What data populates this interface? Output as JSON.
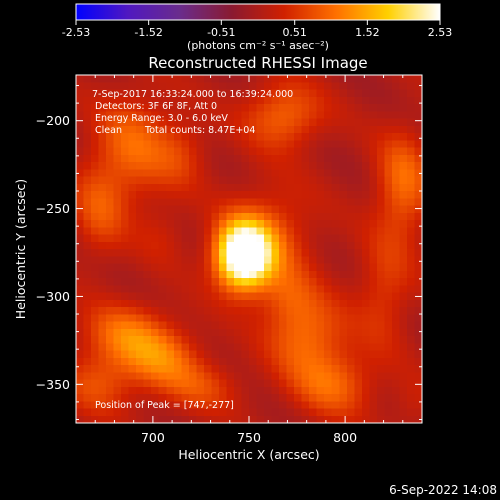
{
  "chart_data": {
    "type": "heatmap",
    "title": "Reconstructed RHESSI Image",
    "xlabel": "Heliocentric X (arcsec)",
    "ylabel": "Heliocentric Y (arcsec)",
    "xlim": [
      660,
      840
    ],
    "ylim": [
      -372,
      -174
    ],
    "x_ticks": [
      700,
      750,
      800
    ],
    "y_ticks": [
      -200,
      -250,
      -300,
      -350
    ],
    "colorbar": {
      "min": -2.53,
      "max": 2.53,
      "ticks": [
        "-2.53",
        "-1.52",
        "-0.51",
        "0.51",
        "1.52",
        "2.53"
      ],
      "units_label": "(photons cm⁻² s⁻¹ asec⁻²)",
      "colors": [
        "#0000ff",
        "#5018c0",
        "#6a2c8c",
        "#8a1a30",
        "#d02000",
        "#ff7000",
        "#ffd000",
        "#ffffff"
      ]
    },
    "annotations": [
      "7-Sep-2017 16:33:24.000 to 16:39:24.000",
      "Detectors: 3F 6F 8F, Att 0",
      "Energy Range: 3.0 - 6.0 keV",
      "Clean",
      "Total counts: 8.47E+04"
    ],
    "peak": {
      "label": "Position of Peak = [747,-277]",
      "x": 747,
      "y": -277,
      "value": 2.53
    },
    "sources": [
      {
        "x": 747,
        "y": -277,
        "sx": 10,
        "sy": 13,
        "amp": 3.2
      },
      {
        "x": 760,
        "y": -266,
        "sx": 16,
        "sy": 20,
        "amp": 0.8
      },
      {
        "x": 686,
        "y": -322,
        "sx": 16,
        "sy": 13,
        "amp": 1.0
      },
      {
        "x": 705,
        "y": -336,
        "sx": 14,
        "sy": 12,
        "amp": 0.9
      },
      {
        "x": 672,
        "y": -350,
        "sx": 13,
        "sy": 12,
        "amp": 0.7
      },
      {
        "x": 725,
        "y": -352,
        "sx": 15,
        "sy": 10,
        "amp": 0.6
      },
      {
        "x": 780,
        "y": -322,
        "sx": 14,
        "sy": 16,
        "amp": 1.0
      },
      {
        "x": 794,
        "y": -350,
        "sx": 15,
        "sy": 13,
        "amp": 0.9
      },
      {
        "x": 770,
        "y": -300,
        "sx": 10,
        "sy": 12,
        "amp": 0.5
      },
      {
        "x": 768,
        "y": -197,
        "sx": 14,
        "sy": 13,
        "amp": 1.0
      },
      {
        "x": 715,
        "y": -218,
        "sx": 10,
        "sy": 14,
        "amp": 0.5
      },
      {
        "x": 690,
        "y": -215,
        "sx": 14,
        "sy": 22,
        "amp": 0.9
      },
      {
        "x": 672,
        "y": -250,
        "sx": 10,
        "sy": 20,
        "amp": 0.7
      },
      {
        "x": 705,
        "y": -265,
        "sx": 9,
        "sy": 12,
        "amp": 0.3
      },
      {
        "x": 830,
        "y": -237,
        "sx": 10,
        "sy": 22,
        "amp": 1.0
      },
      {
        "x": 820,
        "y": -298,
        "sx": 10,
        "sy": 22,
        "amp": 0.6
      },
      {
        "x": 835,
        "y": -363,
        "sx": 8,
        "sy": 12,
        "amp": 0.3
      }
    ]
  },
  "footer": {
    "timestamp": "6-Sep-2022 14:08"
  }
}
